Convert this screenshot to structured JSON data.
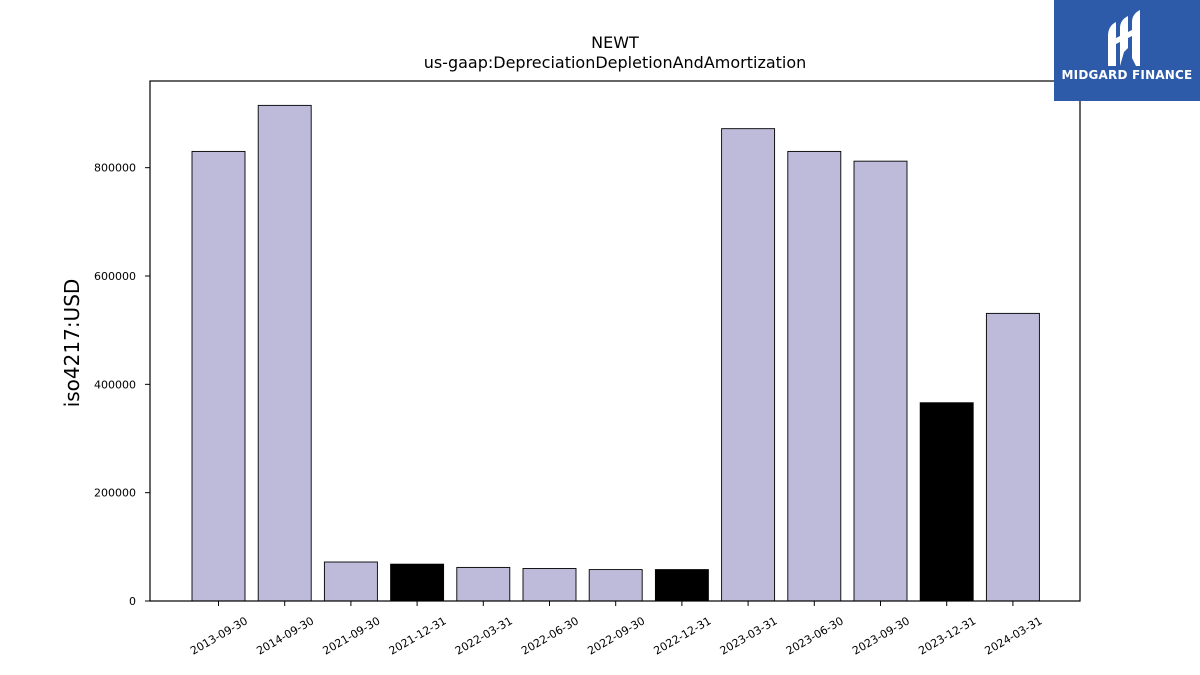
{
  "branding": {
    "name": "MIDGARD FINANCE",
    "logo_icon": "midgard-m-logo-icon",
    "background_color": "#2d5aa9"
  },
  "chart_data": {
    "type": "bar",
    "title": "NEWT",
    "subtitle": "us-gaap:DepreciationDepletionAndAmortization",
    "xlabel": "",
    "ylabel": "iso4217:USD",
    "categories": [
      "2013-09-30",
      "2014-09-30",
      "2021-09-30",
      "2021-12-31",
      "2022-03-31",
      "2022-06-30",
      "2022-09-30",
      "2022-12-31",
      "2023-03-31",
      "2023-06-30",
      "2023-09-30",
      "2023-12-31",
      "2024-03-31"
    ],
    "values": [
      830000,
      915000,
      72000,
      68000,
      62000,
      60000,
      58000,
      58000,
      872000,
      830000,
      812000,
      366000,
      531000
    ],
    "highlight": [
      false,
      false,
      false,
      true,
      false,
      false,
      false,
      true,
      false,
      false,
      false,
      true,
      false
    ],
    "colors": {
      "default": "#bebbda",
      "highlight": "#000000",
      "edge": "#000000"
    },
    "ylim": [
      0,
      960000
    ],
    "yticks": [
      0,
      200000,
      400000,
      600000,
      800000
    ],
    "grid": false,
    "legend": "none"
  }
}
